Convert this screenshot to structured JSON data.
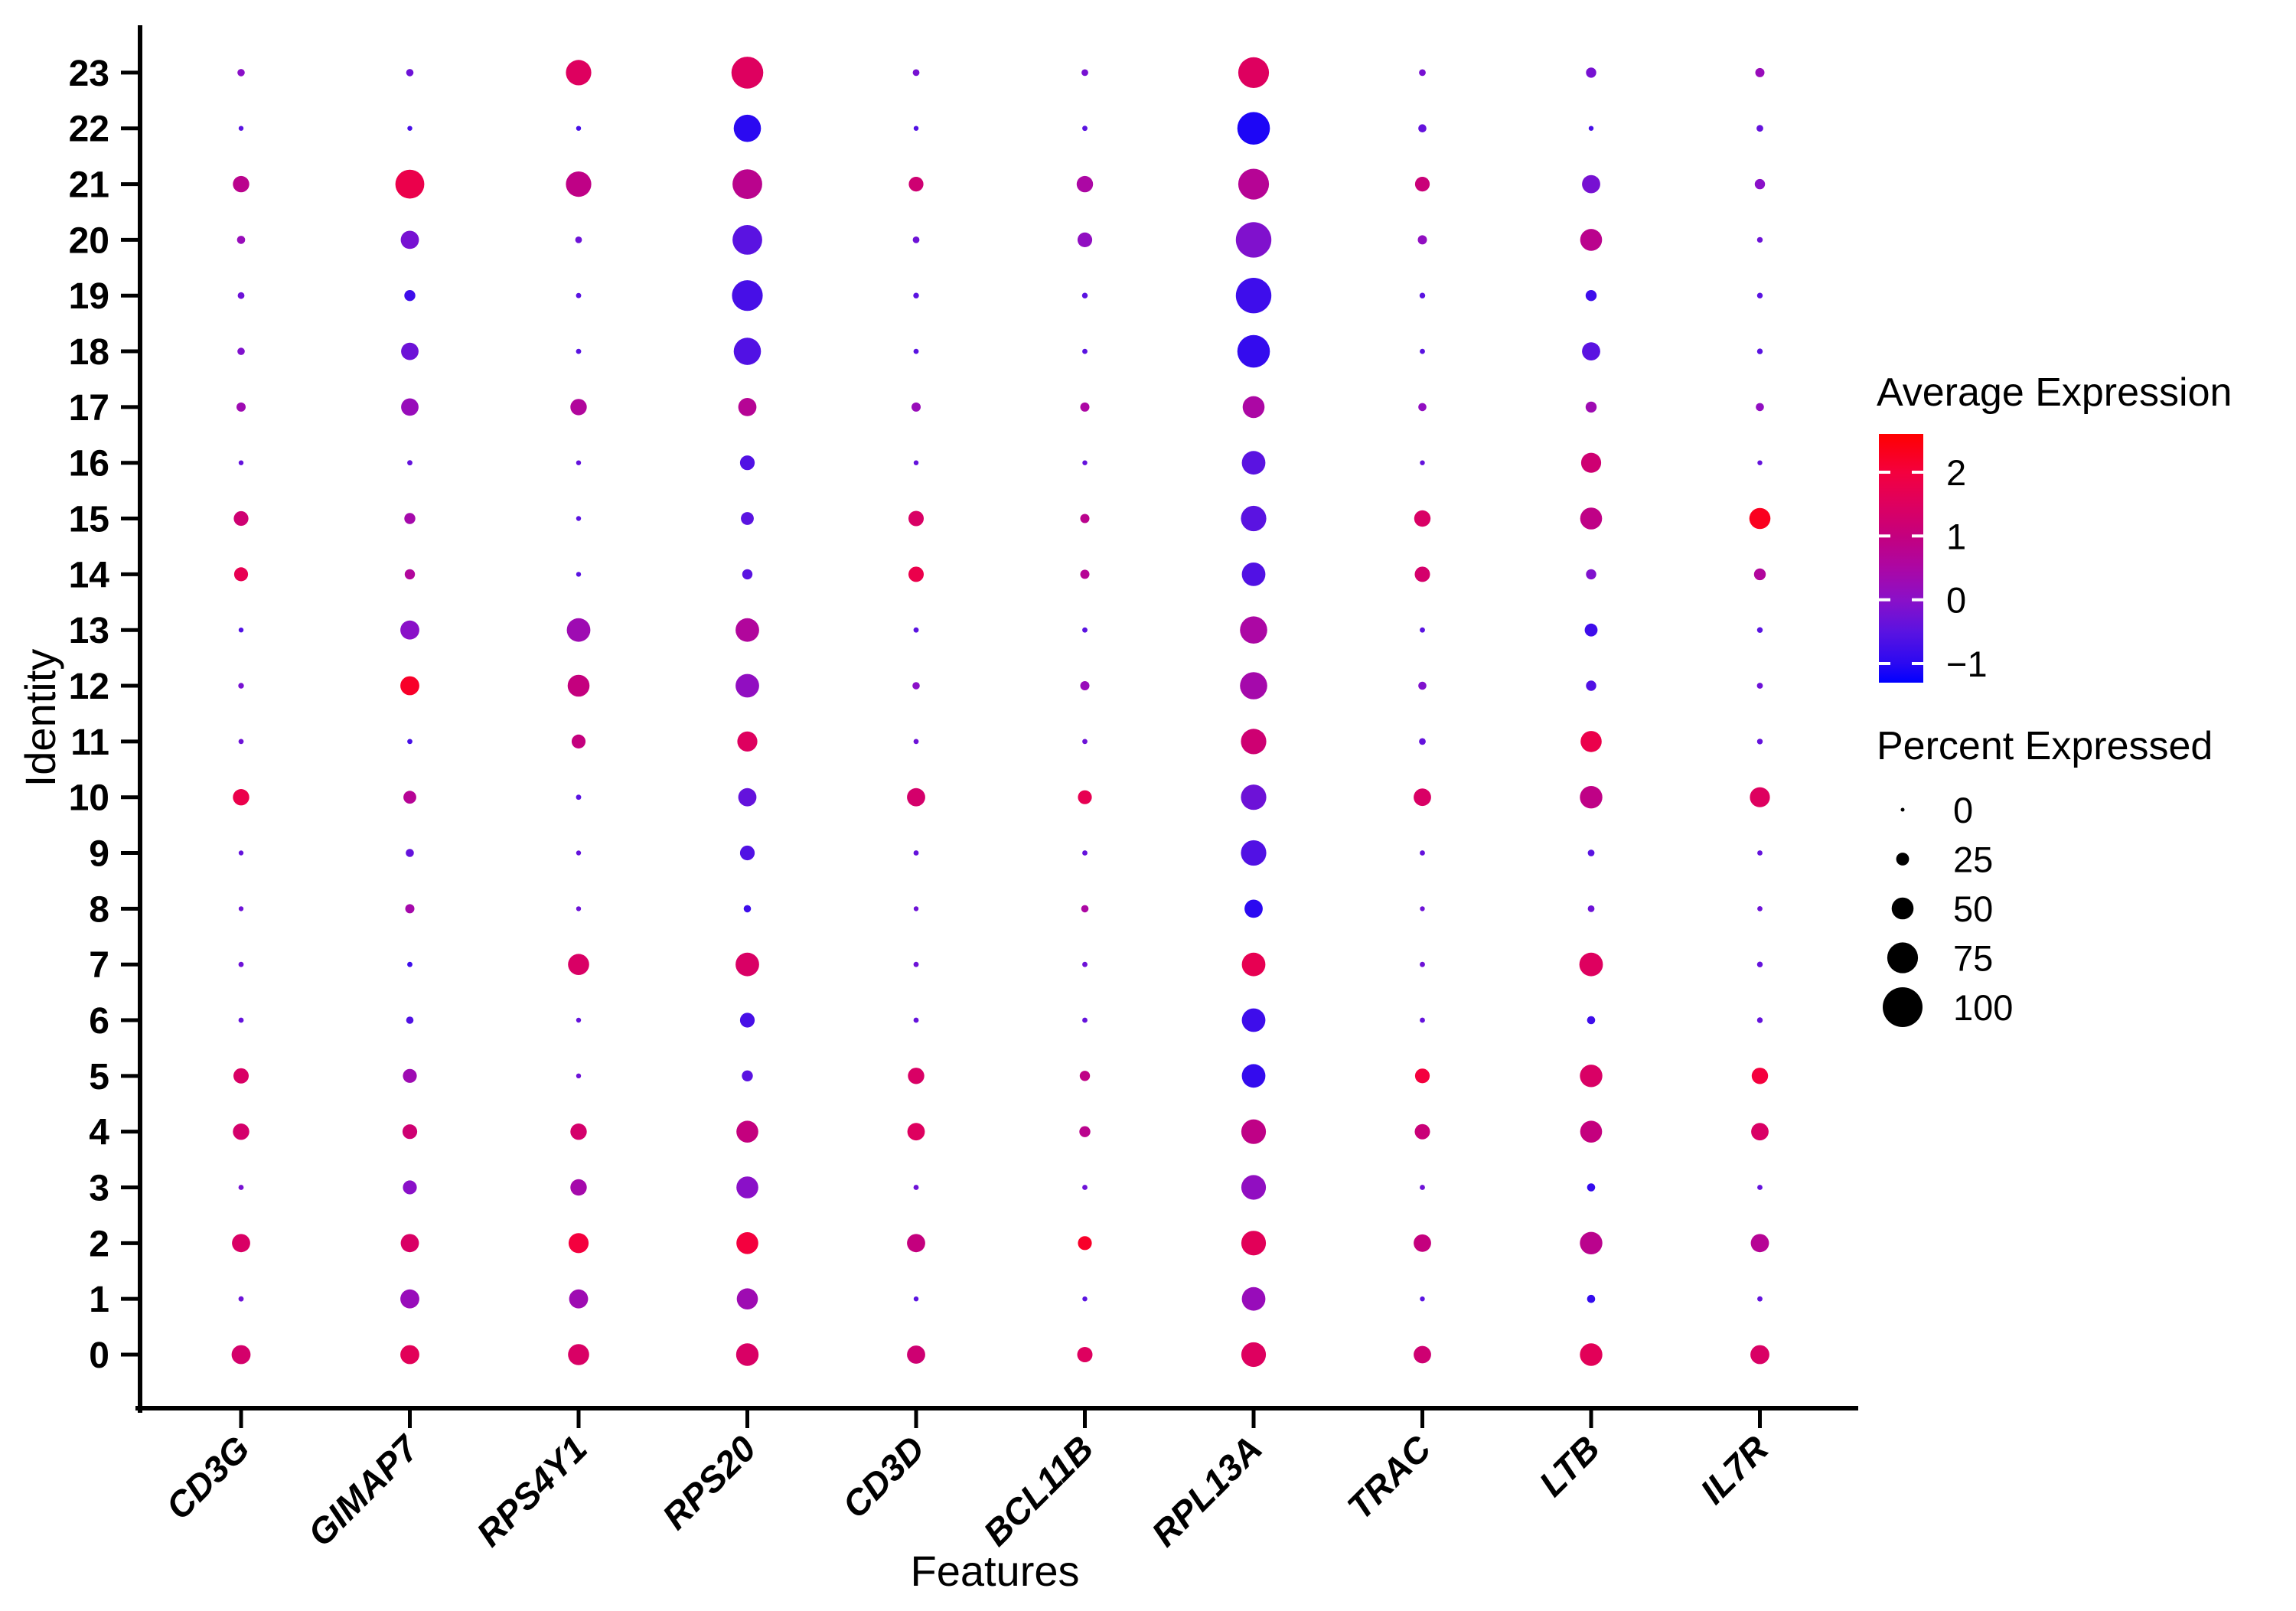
{
  "chart_data": {
    "type": "scatter",
    "subtype": "seurat_dot_plot",
    "title": "",
    "xlabel": "Features",
    "ylabel": "Identity",
    "grid": false,
    "genes": [
      "CD3G",
      "GIMAP7",
      "RPS4Y1",
      "RPS20",
      "CD3D",
      "BCL11B",
      "RPL13A",
      "TRAC",
      "LTB",
      "IL7R"
    ],
    "identities": [
      0,
      1,
      2,
      3,
      4,
      5,
      6,
      7,
      8,
      9,
      10,
      11,
      12,
      13,
      14,
      15,
      16,
      17,
      18,
      19,
      20,
      21,
      22,
      23
    ],
    "y_axis_order_top_to_bottom": [
      23,
      22,
      21,
      20,
      19,
      18,
      17,
      16,
      15,
      14,
      13,
      12,
      11,
      10,
      9,
      8,
      7,
      6,
      5,
      4,
      3,
      2,
      1,
      0
    ],
    "matrix_note": "matrix[gene][identity] = [percent_expressed, average_expression]",
    "matrix": {
      "CD3G": [
        [
          42,
          1.3
        ],
        [
          4,
          -0.3
        ],
        [
          40,
          1.4
        ],
        [
          4,
          -0.2
        ],
        [
          35,
          1.3
        ],
        [
          32,
          1.4
        ],
        [
          4,
          -0.4
        ],
        [
          4,
          -0.3
        ],
        [
          3,
          -0.3
        ],
        [
          3,
          -0.4
        ],
        [
          35,
          1.8
        ],
        [
          4,
          -0.3
        ],
        [
          5,
          -0.2
        ],
        [
          3,
          -0.6
        ],
        [
          28,
          1.7
        ],
        [
          30,
          1.2
        ],
        [
          3,
          -0.4
        ],
        [
          15,
          0.3
        ],
        [
          10,
          -0.1
        ],
        [
          8,
          -0.3
        ],
        [
          12,
          0.2
        ],
        [
          35,
          0.8
        ],
        [
          3,
          -0.5
        ],
        [
          10,
          0.0
        ]
      ],
      "GIMAP7": [
        [
          42,
          1.6
        ],
        [
          42,
          0.2
        ],
        [
          40,
          1.4
        ],
        [
          28,
          0.0
        ],
        [
          30,
          1.2
        ],
        [
          28,
          0.3
        ],
        [
          10,
          -0.6
        ],
        [
          4,
          -0.8
        ],
        [
          15,
          0.4
        ],
        [
          12,
          -0.4
        ],
        [
          25,
          0.7
        ],
        [
          4,
          -0.7
        ],
        [
          42,
          2.2
        ],
        [
          42,
          0.0
        ],
        [
          18,
          0.6
        ],
        [
          20,
          0.4
        ],
        [
          4,
          -0.4
        ],
        [
          38,
          0.2
        ],
        [
          38,
          -0.3
        ],
        [
          20,
          -0.8
        ],
        [
          40,
          -0.2
        ],
        [
          70,
          1.8
        ],
        [
          3,
          -0.7
        ],
        [
          10,
          -0.3
        ]
      ],
      "RPS4Y1": [
        [
          48,
          1.4
        ],
        [
          42,
          0.3
        ],
        [
          45,
          2.0
        ],
        [
          35,
          0.4
        ],
        [
          35,
          1.3
        ],
        [
          3,
          -0.3
        ],
        [
          3,
          -0.4
        ],
        [
          48,
          1.4
        ],
        [
          3,
          -0.3
        ],
        [
          3,
          -0.4
        ],
        [
          4,
          -0.5
        ],
        [
          28,
          1.0
        ],
        [
          50,
          1.0
        ],
        [
          55,
          0.3
        ],
        [
          3,
          -0.5
        ],
        [
          3,
          -0.5
        ],
        [
          3,
          -0.4
        ],
        [
          35,
          0.6
        ],
        [
          4,
          -0.5
        ],
        [
          4,
          -0.5
        ],
        [
          8,
          -0.3
        ],
        [
          60,
          0.9
        ],
        [
          3,
          -0.7
        ],
        [
          60,
          1.5
        ]
      ],
      "RPS20": [
        [
          52,
          1.4
        ],
        [
          48,
          0.3
        ],
        [
          50,
          2.0
        ],
        [
          50,
          0.0
        ],
        [
          50,
          1.0
        ],
        [
          20,
          -0.5
        ],
        [
          30,
          -0.7
        ],
        [
          55,
          1.4
        ],
        [
          10,
          -0.8
        ],
        [
          30,
          -0.6
        ],
        [
          40,
          -0.4
        ],
        [
          45,
          1.5
        ],
        [
          55,
          0.1
        ],
        [
          55,
          0.6
        ],
        [
          18,
          -0.5
        ],
        [
          25,
          -0.5
        ],
        [
          30,
          -0.6
        ],
        [
          40,
          0.7
        ],
        [
          65,
          -0.6
        ],
        [
          75,
          -0.7
        ],
        [
          72,
          -0.5
        ],
        [
          72,
          0.8
        ],
        [
          65,
          -1.0
        ],
        [
          78,
          1.5
        ]
      ],
      "CD3D": [
        [
          40,
          1.2
        ],
        [
          3,
          -0.5
        ],
        [
          40,
          1.0
        ],
        [
          4,
          -0.3
        ],
        [
          38,
          1.5
        ],
        [
          35,
          1.4
        ],
        [
          4,
          -0.4
        ],
        [
          4,
          -0.3
        ],
        [
          3,
          -0.3
        ],
        [
          4,
          -0.4
        ],
        [
          40,
          1.3
        ],
        [
          4,
          -0.3
        ],
        [
          10,
          0.0
        ],
        [
          4,
          -0.5
        ],
        [
          32,
          1.8
        ],
        [
          32,
          1.4
        ],
        [
          3,
          -0.4
        ],
        [
          15,
          0.2
        ],
        [
          4,
          -0.5
        ],
        [
          5,
          -0.5
        ],
        [
          8,
          -0.3
        ],
        [
          30,
          1.2
        ],
        [
          3,
          -0.6
        ],
        [
          8,
          -0.2
        ]
      ],
      "BCL11B": [
        [
          32,
          1.5
        ],
        [
          3,
          -0.5
        ],
        [
          28,
          2.2
        ],
        [
          4,
          -0.3
        ],
        [
          20,
          0.8
        ],
        [
          18,
          0.9
        ],
        [
          4,
          -0.4
        ],
        [
          4,
          -0.3
        ],
        [
          10,
          0.5
        ],
        [
          4,
          -0.4
        ],
        [
          28,
          1.7
        ],
        [
          4,
          -0.3
        ],
        [
          15,
          0.2
        ],
        [
          4,
          -0.5
        ],
        [
          15,
          0.7
        ],
        [
          15,
          0.8
        ],
        [
          3,
          -0.4
        ],
        [
          15,
          0.5
        ],
        [
          4,
          -0.5
        ],
        [
          5,
          -0.5
        ],
        [
          30,
          0.1
        ],
        [
          35,
          0.5
        ],
        [
          4,
          -0.5
        ],
        [
          8,
          -0.2
        ]
      ],
      "RPL13A": [
        [
          58,
          1.5
        ],
        [
          55,
          0.2
        ],
        [
          58,
          1.6
        ],
        [
          58,
          0.1
        ],
        [
          58,
          0.9
        ],
        [
          55,
          -0.9
        ],
        [
          55,
          -0.8
        ],
        [
          55,
          1.7
        ],
        [
          40,
          -1.0
        ],
        [
          60,
          -0.6
        ],
        [
          60,
          -0.3
        ],
        [
          60,
          1.2
        ],
        [
          65,
          0.4
        ],
        [
          65,
          0.5
        ],
        [
          55,
          -0.6
        ],
        [
          60,
          -0.5
        ],
        [
          55,
          -0.5
        ],
        [
          50,
          0.5
        ],
        [
          80,
          -0.9
        ],
        [
          88,
          -0.8
        ],
        [
          88,
          -0.1
        ],
        [
          75,
          0.7
        ],
        [
          80,
          -1.1
        ],
        [
          75,
          1.5
        ]
      ],
      "TRAC": [
        [
          38,
          1.2
        ],
        [
          3,
          -0.5
        ],
        [
          38,
          1.0
        ],
        [
          4,
          -0.3
        ],
        [
          32,
          1.1
        ],
        [
          30,
          2.0
        ],
        [
          4,
          -0.4
        ],
        [
          4,
          -0.3
        ],
        [
          3,
          -0.3
        ],
        [
          4,
          -0.4
        ],
        [
          38,
          1.4
        ],
        [
          8,
          -0.4
        ],
        [
          12,
          -0.1
        ],
        [
          4,
          -0.5
        ],
        [
          32,
          1.3
        ],
        [
          35,
          1.4
        ],
        [
          3,
          -0.4
        ],
        [
          12,
          0.1
        ],
        [
          4,
          -0.5
        ],
        [
          5,
          -0.5
        ],
        [
          15,
          0.1
        ],
        [
          30,
          1.1
        ],
        [
          12,
          -0.4
        ],
        [
          8,
          -0.2
        ]
      ],
      "LTB": [
        [
          52,
          1.6
        ],
        [
          12,
          -0.9
        ],
        [
          52,
          0.8
        ],
        [
          12,
          -0.9
        ],
        [
          50,
          1.0
        ],
        [
          52,
          1.4
        ],
        [
          12,
          -0.8
        ],
        [
          55,
          1.5
        ],
        [
          8,
          -0.3
        ],
        [
          8,
          -0.5
        ],
        [
          52,
          0.9
        ],
        [
          48,
          1.8
        ],
        [
          18,
          -0.6
        ],
        [
          25,
          -0.8
        ],
        [
          18,
          -0.1
        ],
        [
          50,
          0.9
        ],
        [
          45,
          1.2
        ],
        [
          20,
          0.3
        ],
        [
          40,
          -0.5
        ],
        [
          20,
          -0.8
        ],
        [
          50,
          0.8
        ],
        [
          40,
          -0.2
        ],
        [
          3,
          -0.7
        ],
        [
          18,
          -0.2
        ]
      ],
      "IL7R": [
        [
          42,
          1.4
        ],
        [
          4,
          -0.4
        ],
        [
          40,
          0.7
        ],
        [
          4,
          -0.4
        ],
        [
          38,
          1.4
        ],
        [
          35,
          2.0
        ],
        [
          5,
          -0.4
        ],
        [
          5,
          -0.4
        ],
        [
          4,
          -0.3
        ],
        [
          4,
          -0.4
        ],
        [
          45,
          1.5
        ],
        [
          5,
          -0.4
        ],
        [
          6,
          -0.3
        ],
        [
          5,
          -0.5
        ],
        [
          22,
          0.6
        ],
        [
          48,
          2.3
        ],
        [
          3,
          -0.4
        ],
        [
          12,
          0.1
        ],
        [
          5,
          -0.5
        ],
        [
          5,
          -0.5
        ],
        [
          5,
          -0.3
        ],
        [
          18,
          0.0
        ],
        [
          8,
          -0.4
        ],
        [
          15,
          0.2
        ]
      ]
    },
    "color_legend": {
      "title": "Average Expression",
      "tick_values": [
        2,
        1,
        0,
        -1
      ],
      "tick_labels": [
        "2",
        "1",
        "0",
        "−1"
      ],
      "value_range": [
        -1.3,
        2.6
      ],
      "gradient_stops": [
        [
          -1.3,
          "#0000FF"
        ],
        [
          -1.0,
          "#2B09F1"
        ],
        [
          -0.5,
          "#5A13E1"
        ],
        [
          0.0,
          "#8A10C8"
        ],
        [
          0.5,
          "#AC07A4"
        ],
        [
          1.0,
          "#C4007E"
        ],
        [
          1.5,
          "#DE005F"
        ],
        [
          2.0,
          "#F4003E"
        ],
        [
          2.6,
          "#FF0000"
        ]
      ]
    },
    "size_legend": {
      "title": "Percent Expressed",
      "values": [
        0,
        25,
        50,
        75,
        100
      ],
      "labels": [
        "0",
        "25",
        "50",
        "75",
        "100"
      ],
      "dot_color": "#000000"
    },
    "axis_color": "#000000",
    "background_color": "#FFFFFF"
  }
}
